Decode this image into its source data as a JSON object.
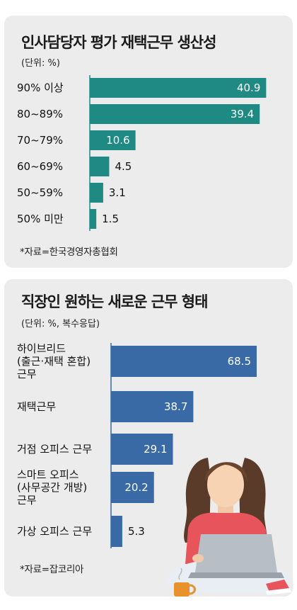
{
  "chart_data": [
    {
      "type": "bar",
      "orientation": "horizontal",
      "title": "인사담당자 평가 재택근무 생산성",
      "unit": "(단위: %)",
      "categories": [
        "90% 이상",
        "80~89%",
        "70~79%",
        "60~69%",
        "50~59%",
        "50% 미만"
      ],
      "values": [
        40.9,
        39.4,
        10.6,
        4.5,
        3.1,
        1.5
      ],
      "value_labels": [
        "40.9",
        "39.4",
        "10.6",
        "4.5",
        "3.1",
        "1.5"
      ],
      "source": "*자료=한국경영자총협회",
      "color": "#1f8a84"
    },
    {
      "type": "bar",
      "orientation": "horizontal",
      "title": "직장인 원하는 새로운 근무 형태",
      "unit": "(단위: %, 복수응답)",
      "categories": [
        [
          "하이브리드",
          "(출근·재택 혼합)",
          "근무"
        ],
        [
          "재택근무"
        ],
        [
          "거점 오피스 근무"
        ],
        [
          "스마트 오피스",
          "(사무공간 개방)",
          "근무"
        ],
        [
          "가상 오피스 근무"
        ]
      ],
      "values": [
        68.5,
        38.7,
        29.1,
        20.2,
        5.3
      ],
      "value_labels": [
        "68.5",
        "38.7",
        "29.1",
        "20.2",
        "5.3"
      ],
      "source": "*자료=잡코리아",
      "color": "#3a6aa6"
    }
  ],
  "illustration": {
    "icon": "woman-with-laptop-illustration",
    "shirt": "#e8545b",
    "laptop": "#b8bec6",
    "mug": "#e8922e"
  }
}
